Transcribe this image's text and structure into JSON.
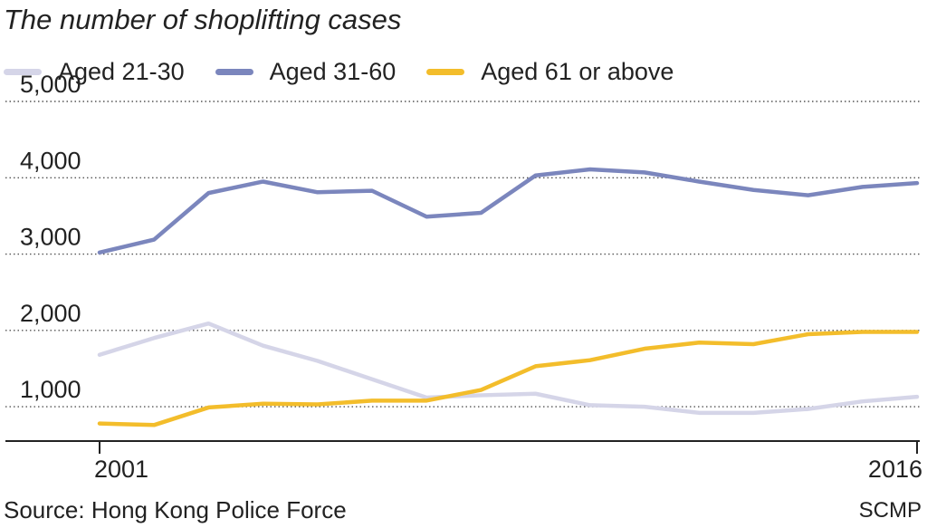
{
  "title": "The number of shoplifting cases",
  "source": "Source: Hong Kong Police Force",
  "credit": "SCMP",
  "chart_data": {
    "type": "line",
    "title": "The number of shoplifting cases",
    "xlabel": "",
    "ylabel": "",
    "x": [
      2001,
      2002,
      2003,
      2004,
      2005,
      2006,
      2007,
      2008,
      2009,
      2010,
      2011,
      2012,
      2013,
      2014,
      2015,
      2016
    ],
    "x_tick_labels": [
      "2001",
      "2016"
    ],
    "y_ticks": [
      1000,
      2000,
      3000,
      4000,
      5000
    ],
    "y_tick_labels": [
      "1,000",
      "2,000",
      "3,000",
      "4,000",
      "5,000"
    ],
    "ylim": [
      550,
      5000
    ],
    "grid": "horizontal dotted",
    "legend_position": "top-left",
    "series": [
      {
        "name": "Aged 21-30",
        "color": "#d5d5e8",
        "values": [
          1680,
          1900,
          2090,
          1800,
          1600,
          1360,
          1120,
          1150,
          1170,
          1020,
          1000,
          920,
          920,
          970,
          1070,
          1130
        ]
      },
      {
        "name": "Aged 31-60",
        "color": "#7b86bd",
        "values": [
          3020,
          3190,
          3800,
          3950,
          3810,
          3830,
          3490,
          3540,
          4030,
          4110,
          4070,
          3950,
          3840,
          3770,
          3880,
          3930
        ]
      },
      {
        "name": "Aged 61 or above",
        "color": "#f3bd2b",
        "values": [
          780,
          760,
          990,
          1040,
          1030,
          1080,
          1080,
          1220,
          1530,
          1610,
          1760,
          1840,
          1820,
          1950,
          1980,
          1980
        ]
      }
    ]
  }
}
